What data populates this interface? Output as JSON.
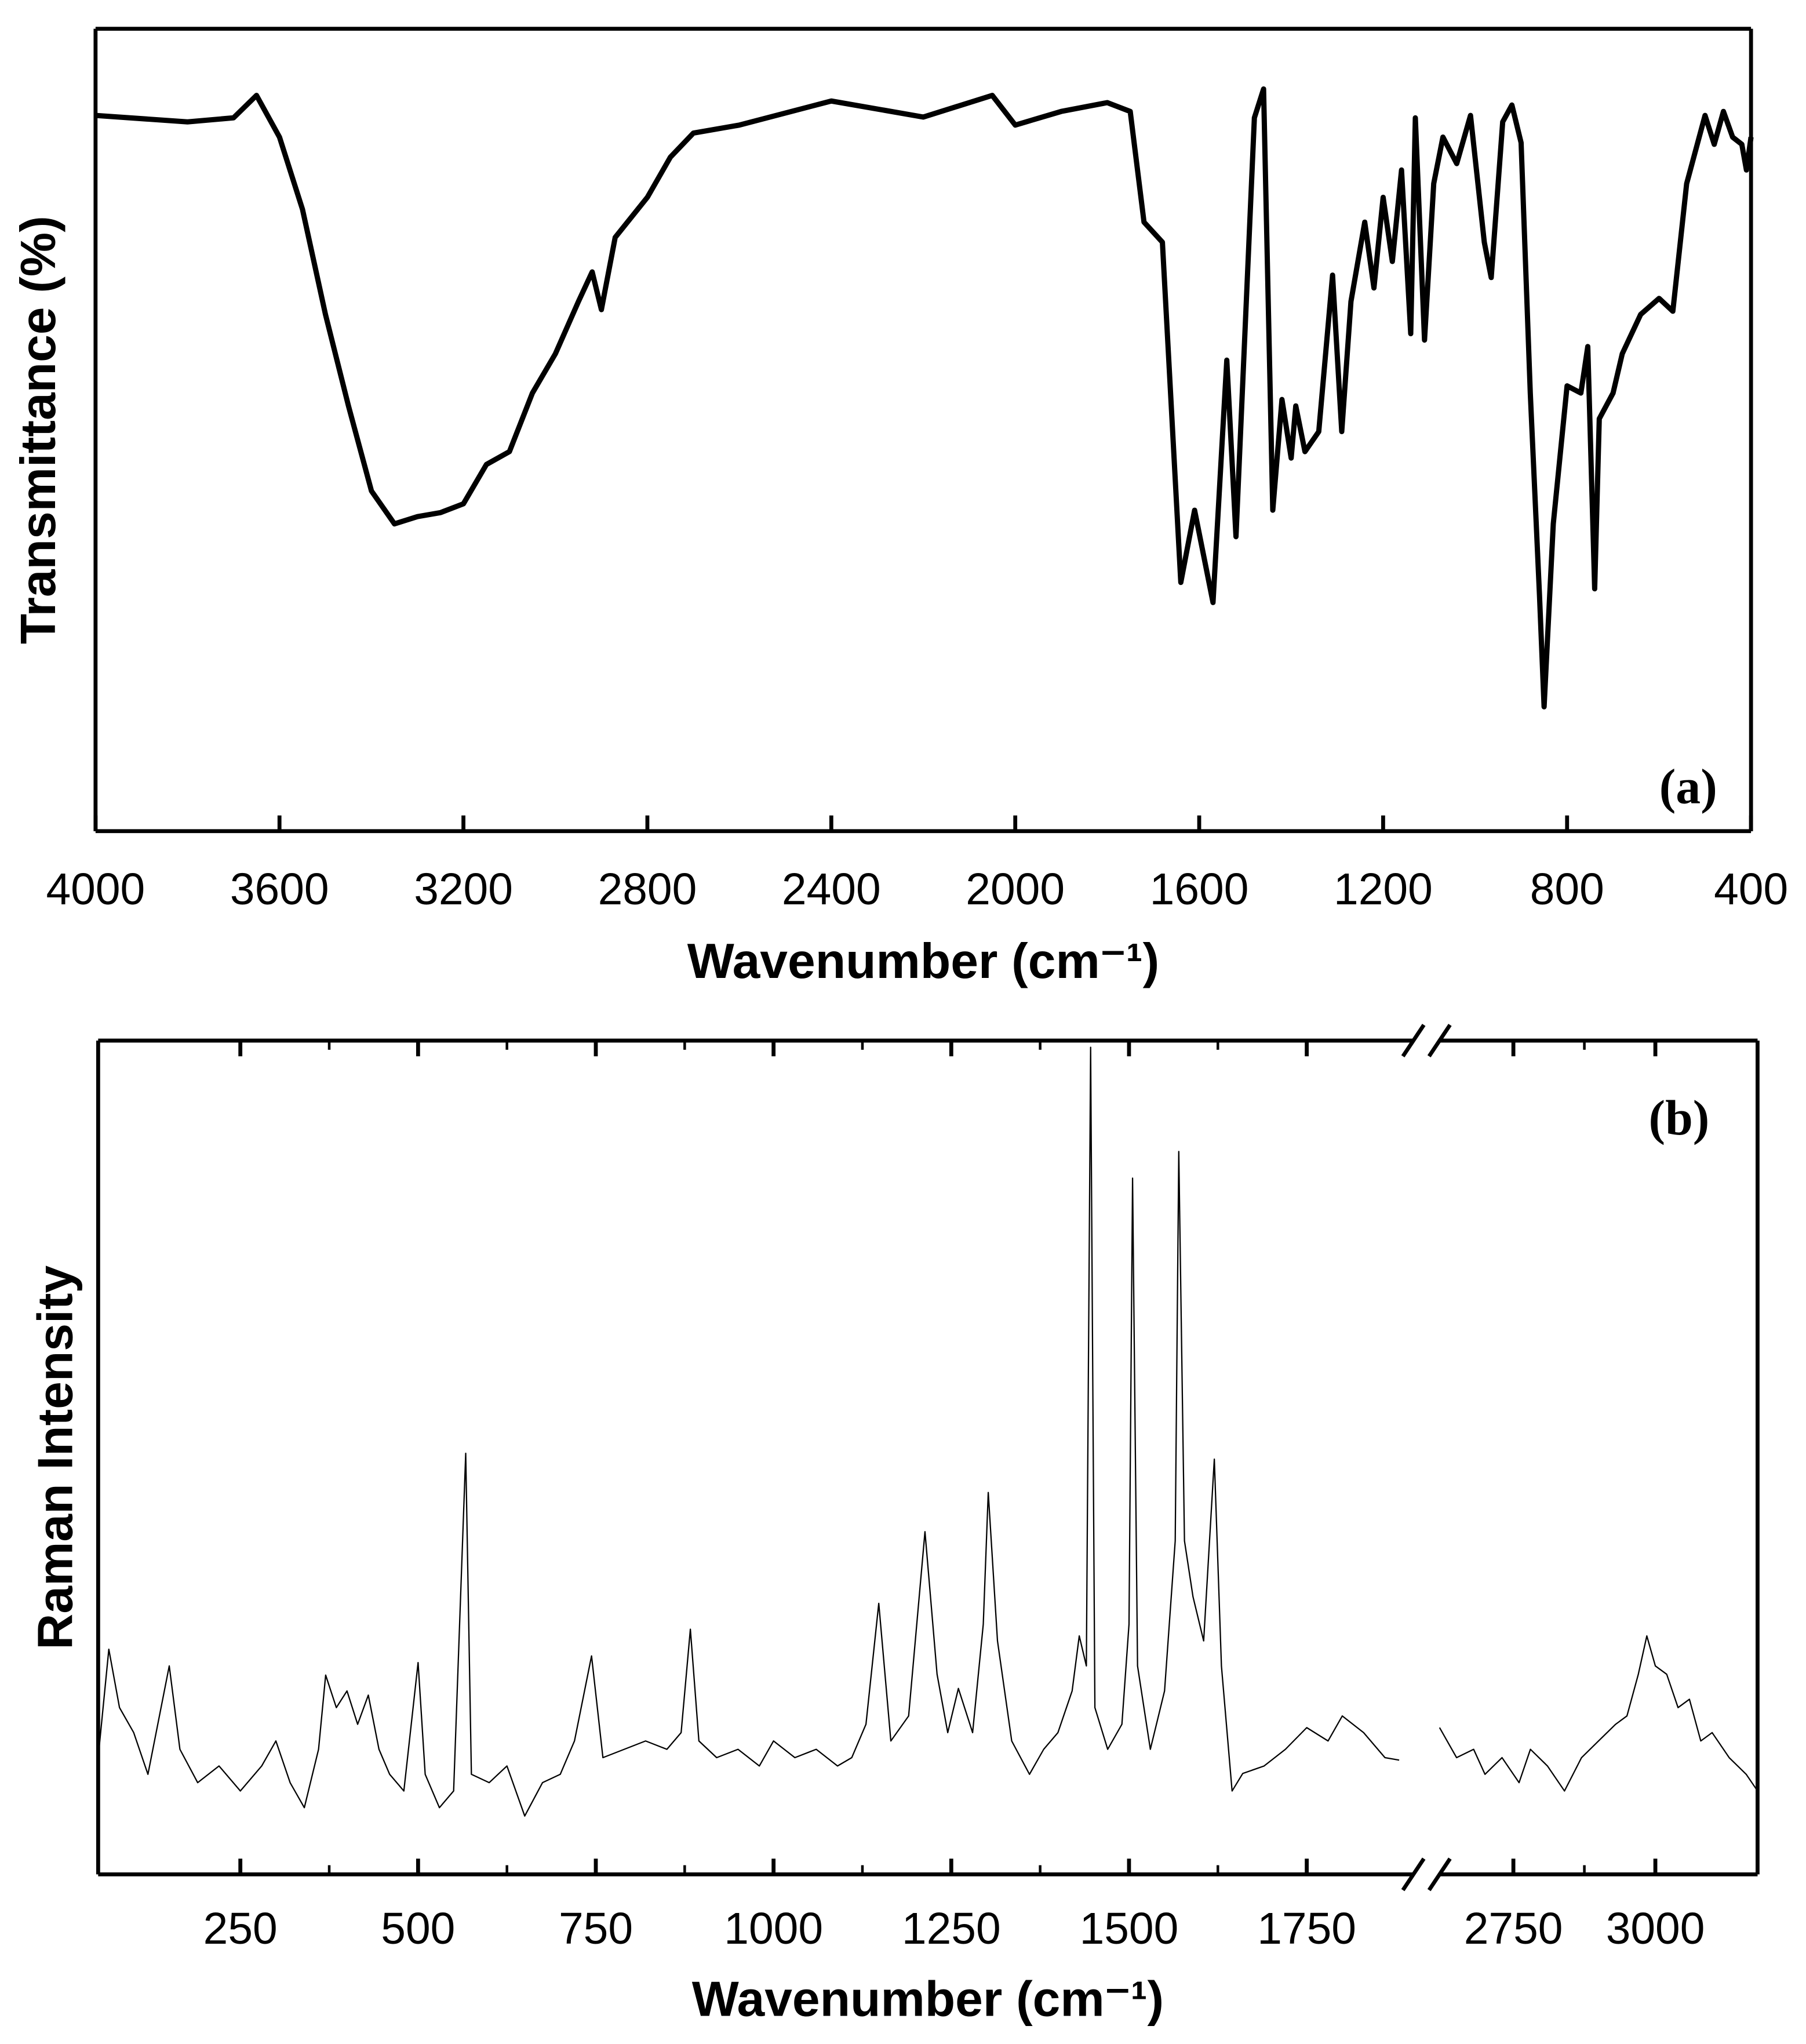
{
  "chart_data": [
    {
      "type": "line",
      "xlabel": "Wavenumber (cm⁻¹)",
      "ylabel": "Transmittance (%)",
      "annotation": "(a)",
      "color": "#000000",
      "xlim": [
        4000,
        400
      ],
      "xticks": [
        4000,
        3600,
        3200,
        2800,
        2400,
        2000,
        1600,
        1200,
        800,
        400
      ],
      "ylim": [
        0,
        100
      ],
      "x": [
        4000,
        3800,
        3700,
        3650,
        3600,
        3550,
        3500,
        3450,
        3400,
        3350,
        3300,
        3250,
        3200,
        3150,
        3100,
        3050,
        3000,
        2950,
        2920,
        2900,
        2870,
        2800,
        2750,
        2700,
        2600,
        2400,
        2200,
        2050,
        2000,
        1900,
        1800,
        1750,
        1720,
        1680,
        1640,
        1610,
        1570,
        1540,
        1520,
        1480,
        1460,
        1440,
        1420,
        1400,
        1390,
        1370,
        1340,
        1310,
        1290,
        1270,
        1240,
        1220,
        1200,
        1180,
        1160,
        1140,
        1130,
        1110,
        1090,
        1070,
        1040,
        1010,
        980,
        965,
        940,
        920,
        900,
        880,
        860,
        850,
        830,
        800,
        770,
        755,
        740,
        730,
        700,
        680,
        640,
        600,
        570,
        540,
        500,
        480,
        460,
        440,
        420,
        410,
        400
      ],
      "values": [
        89.2,
        88.4,
        88.9,
        91.7,
        86.5,
        77.5,
        64.4,
        53,
        42.4,
        38.3,
        39.2,
        39.7,
        40.8,
        45.7,
        47.3,
        54.6,
        59.5,
        66,
        69.7,
        65,
        74,
        79,
        84,
        87,
        88,
        91,
        89,
        91.7,
        88,
        89.7,
        90.8,
        89.7,
        75.9,
        73.4,
        31,
        40,
        28.5,
        58.7,
        36.7,
        88.9,
        92.5,
        40,
        53.8,
        46.5,
        53,
        47.3,
        49.8,
        69.3,
        49.8,
        66,
        75.9,
        67.7,
        79,
        71,
        82.4,
        62,
        88.9,
        61.2,
        80.7,
        86.5,
        83.2,
        89.2,
        73.4,
        69,
        88.4,
        90.5,
        85.8,
        54.6,
        29.4,
        15.5,
        38.3,
        55.5,
        54.6,
        60.4,
        30.2,
        51.4,
        54.6,
        59.5,
        64.4,
        66.4,
        64.8,
        80.7,
        89.2,
        85.6,
        89.7,
        86.5,
        85.6,
        82.4,
        86.5
      ]
    },
    {
      "type": "line",
      "xlabel": "Wavenumber (cm⁻¹)",
      "ylabel": "Raman Intensity",
      "annotation": "(b)",
      "color": "#000000",
      "axis_break": true,
      "ylim": [
        0,
        100
      ],
      "segments": [
        {
          "xlim": [
            50,
            1900
          ],
          "xticks": [
            250,
            500,
            750,
            1000,
            1250,
            1500,
            1750
          ],
          "x": [
            50,
            65,
            80,
            100,
            120,
            150,
            165,
            190,
            220,
            250,
            280,
            300,
            320,
            340,
            360,
            370,
            385,
            400,
            415,
            430,
            445,
            460,
            480,
            500,
            510,
            530,
            550,
            567,
            575,
            600,
            625,
            650,
            675,
            700,
            720,
            744,
            760,
            790,
            820,
            850,
            870,
            883,
            895,
            920,
            950,
            980,
            1000,
            1030,
            1060,
            1090,
            1110,
            1130,
            1148,
            1165,
            1190,
            1213,
            1230,
            1245,
            1260,
            1280,
            1295,
            1302,
            1315,
            1335,
            1360,
            1380,
            1400,
            1420,
            1430,
            1440,
            1446,
            1452,
            1470,
            1490,
            1500,
            1505,
            1512,
            1530,
            1550,
            1565,
            1570,
            1578,
            1590,
            1605,
            1620,
            1630,
            1645,
            1660,
            1690,
            1720,
            1750,
            1780,
            1800,
            1830,
            1860,
            1880
          ],
          "values": [
            14,
            27,
            20,
            17,
            12,
            25,
            15,
            11,
            13,
            10,
            13,
            16,
            11,
            8,
            15,
            23.9,
            20,
            22,
            18,
            21.5,
            15,
            12,
            10,
            25.4,
            12,
            8,
            10,
            50.5,
            12,
            11,
            13,
            7,
            11,
            12,
            16,
            26.2,
            14,
            15,
            16,
            15,
            17,
            29.4,
            16,
            14,
            15,
            13,
            16,
            14,
            15,
            13,
            14,
            18,
            32.5,
            16,
            19,
            41.1,
            24,
            17,
            22.3,
            17,
            30,
            45.8,
            28,
            16,
            12,
            15,
            17,
            22,
            28.6,
            25,
            99.2,
            20,
            15,
            18,
            30,
            83.5,
            25,
            15,
            22,
            40,
            86.7,
            40,
            33.3,
            28,
            49.8,
            25,
            10,
            12.1,
            13,
            15,
            17.6,
            16,
            19,
            17,
            14,
            13.7
          ]
        },
        {
          "xlim": [
            2620,
            3180
          ],
          "xticks": [
            2750,
            3000
          ],
          "x": [
            2620,
            2650,
            2680,
            2700,
            2730,
            2760,
            2780,
            2810,
            2840,
            2870,
            2900,
            2930,
            2950,
            2970,
            2985,
            3000,
            3020,
            3040,
            3060,
            3080,
            3100,
            3130,
            3160,
            3180
          ],
          "values": [
            17.6,
            14,
            15,
            12,
            14,
            11,
            15,
            13,
            10,
            14,
            16,
            18,
            19,
            24,
            28.6,
            25,
            24,
            20,
            21,
            16,
            17,
            14,
            12,
            10
          ]
        }
      ]
    }
  ]
}
